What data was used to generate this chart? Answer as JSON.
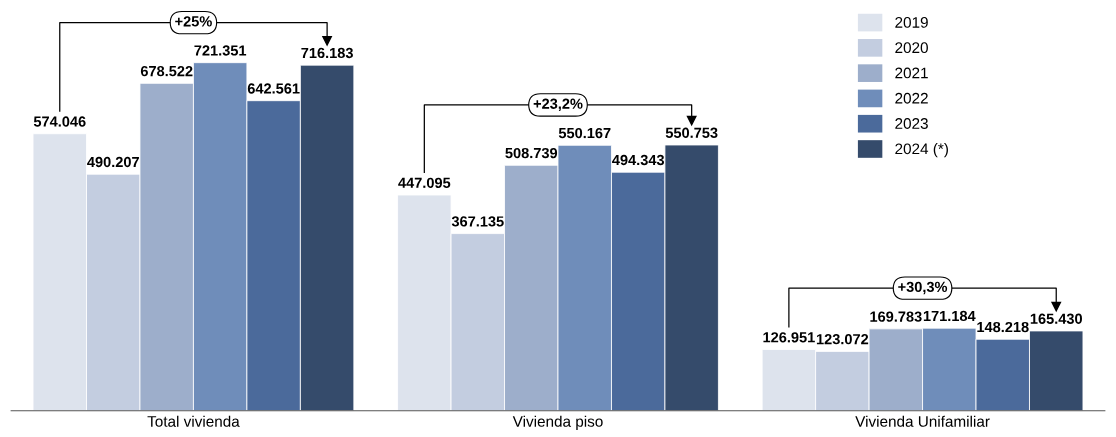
{
  "chart_data": {
    "type": "bar",
    "categories": [
      "Total vivienda",
      "Vivienda piso",
      "Vivienda Unifamiliar"
    ],
    "series": [
      {
        "name": "2019",
        "color": "#dde3ed",
        "values": [
          574046,
          447095,
          126951
        ],
        "value_labels": [
          "574.046",
          "447.095",
          "126.951"
        ]
      },
      {
        "name": "2020",
        "color": "#c3cde0",
        "values": [
          490207,
          367135,
          123072
        ],
        "value_labels": [
          "490.207",
          "367.135",
          "123.072"
        ]
      },
      {
        "name": "2021",
        "color": "#9daecb",
        "values": [
          678522,
          508739,
          169783
        ],
        "value_labels": [
          "678.522",
          "508.739",
          "169.783"
        ]
      },
      {
        "name": "2022",
        "color": "#6f8dba",
        "values": [
          721351,
          550167,
          171184
        ],
        "value_labels": [
          "721.351",
          "550.167",
          "171.184"
        ]
      },
      {
        "name": "2023",
        "color": "#4b6a9b",
        "values": [
          642561,
          494343,
          148218
        ],
        "value_labels": [
          "642.561",
          "494.343",
          "148.218"
        ]
      },
      {
        "name": "2024 (*)",
        "color": "#354b6b",
        "values": [
          716183,
          550753,
          165430
        ],
        "value_labels": [
          "716.183",
          "550.753",
          "165.430"
        ]
      }
    ],
    "annotations": [
      "+25%",
      "+23,2%",
      "+30,3%"
    ],
    "legend": "top right",
    "grid": false
  }
}
